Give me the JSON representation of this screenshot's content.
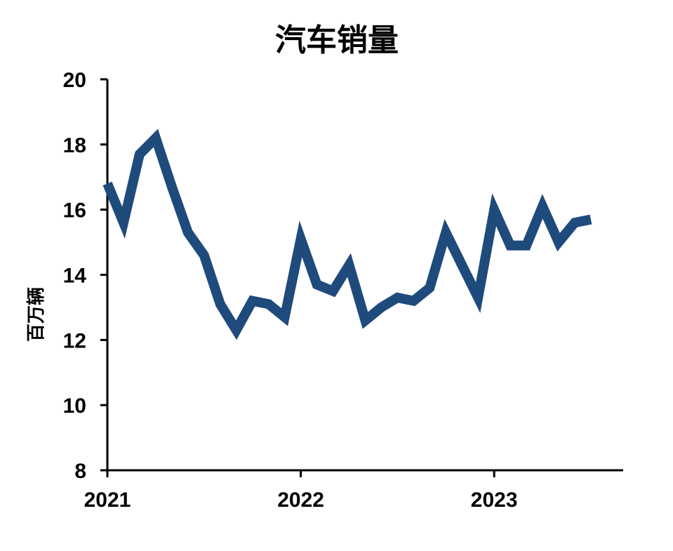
{
  "chart_data": {
    "type": "line",
    "title": "汽车销量",
    "ylabel": "百万辆",
    "xlabel": "",
    "ylim": [
      8,
      20
    ],
    "yticks": [
      8,
      10,
      12,
      14,
      16,
      18,
      20
    ],
    "xlim": [
      2021.0,
      2023.667
    ],
    "xticks": [
      {
        "value": 2021,
        "label": "2021"
      },
      {
        "value": 2022,
        "label": "2022"
      },
      {
        "value": 2023,
        "label": "2023"
      }
    ],
    "grid": false,
    "legend": "none",
    "series": [
      {
        "color": "#1f4a7c",
        "x": [
          "2021-01",
          "2021-02",
          "2021-03",
          "2021-04",
          "2021-05",
          "2021-06",
          "2021-07",
          "2021-08",
          "2021-09",
          "2021-10",
          "2021-11",
          "2021-12",
          "2022-01",
          "2022-02",
          "2022-03",
          "2022-04",
          "2022-05",
          "2022-06",
          "2022-07",
          "2022-08",
          "2022-09",
          "2022-10",
          "2022-11",
          "2022-12",
          "2023-01",
          "2023-02",
          "2023-03",
          "2023-04",
          "2023-05",
          "2023-06",
          "2023-07"
        ],
        "values": [
          16.8,
          15.6,
          17.7,
          18.2,
          16.7,
          15.3,
          14.6,
          13.1,
          12.3,
          13.2,
          13.1,
          12.7,
          15.1,
          13.7,
          13.5,
          14.3,
          12.6,
          13.0,
          13.3,
          13.2,
          13.6,
          15.3,
          14.3,
          13.3,
          16.0,
          14.9,
          14.9,
          16.1,
          15.0,
          15.6,
          15.7
        ]
      }
    ]
  }
}
